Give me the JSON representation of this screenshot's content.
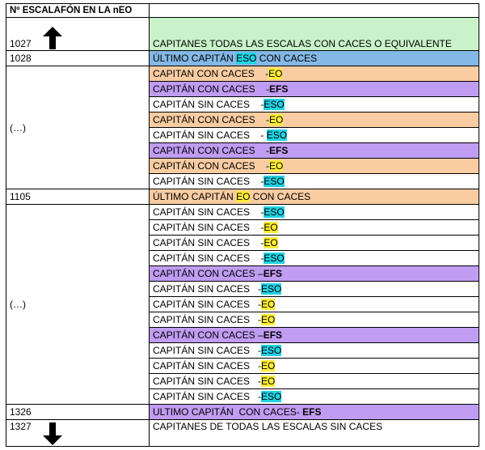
{
  "header": {
    "col1": "Nº ESCALAFÓN EN LA nEO",
    "col2": ""
  },
  "colors": {
    "green": "#c9f2c9",
    "blue": "#84b8e6",
    "orange": "#f9cca2",
    "purple": "#c09cf2",
    "white": "#ffffff",
    "cyan": "#1fd2e3",
    "yellow": "#ffee33"
  },
  "left_col": [
    {
      "text": "1027",
      "arrow": "up-arrow-icon"
    },
    {
      "text": "1028"
    },
    {
      "text": "(…)"
    },
    {
      "text": "1105"
    },
    {
      "text": "(…)"
    },
    {
      "text": "1326"
    },
    {
      "text": "1327",
      "arrow": "down-arrow-icon"
    }
  ],
  "rows": [
    {
      "bg": "green",
      "parts": [
        {
          "t": "CAPITANES TODAS LAS ESCALAS CON CACES O EQUIVALENTE"
        }
      ]
    },
    {
      "bg": "blue",
      "parts": [
        {
          "t": "ÚLTIMO CAPITÁN "
        },
        {
          "t": "ESO",
          "hl": "cyan"
        },
        {
          "t": " CON CACES"
        }
      ]
    },
    {
      "bg": "orange",
      "parts": [
        {
          "t": "CAPITAN CON CACES    -"
        },
        {
          "t": "EO",
          "hl": "yellow"
        }
      ]
    },
    {
      "bg": "purple",
      "parts": [
        {
          "t": "CAPITÁN CON CACES    -"
        },
        {
          "t": "EFS",
          "bold": true
        }
      ]
    },
    {
      "bg": "white",
      "parts": [
        {
          "t": "CAPITÁN SIN CACES    -"
        },
        {
          "t": "ESO",
          "hl": "cyan"
        }
      ]
    },
    {
      "bg": "orange",
      "parts": [
        {
          "t": "CAPITÁN CON CACES    -"
        },
        {
          "t": "EO",
          "hl": "yellow"
        }
      ]
    },
    {
      "bg": "white",
      "parts": [
        {
          "t": "CAPITÁN SIN CACES    - "
        },
        {
          "t": "ESO",
          "hl": "cyan"
        }
      ]
    },
    {
      "bg": "purple",
      "parts": [
        {
          "t": "CAPITÁN CON CACES    -"
        },
        {
          "t": "EFS",
          "bold": true
        }
      ]
    },
    {
      "bg": "orange",
      "parts": [
        {
          "t": "CAPITÁN CON CACES    -"
        },
        {
          "t": "EO",
          "hl": "yellow"
        }
      ]
    },
    {
      "bg": "white",
      "parts": [
        {
          "t": "CAPITÁN SIN CACES    -"
        },
        {
          "t": "ESO",
          "hl": "cyan"
        }
      ]
    },
    {
      "bg": "orange",
      "parts": [
        {
          "t": "ÚLTIMO CAPITÁN "
        },
        {
          "t": "EO",
          "hl": "yellow"
        },
        {
          "t": " CON CACES"
        }
      ]
    },
    {
      "bg": "white",
      "parts": [
        {
          "t": "CAPITÁN SIN CACES    -"
        },
        {
          "t": "ESO",
          "hl": "cyan"
        }
      ]
    },
    {
      "bg": "white",
      "parts": [
        {
          "t": "CAPITÁN SIN CACES    -"
        },
        {
          "t": "EO",
          "hl": "yellow"
        }
      ]
    },
    {
      "bg": "white",
      "parts": [
        {
          "t": "CAPITÁN SIN CACES    -"
        },
        {
          "t": "EO",
          "hl": "yellow"
        }
      ]
    },
    {
      "bg": "white",
      "parts": [
        {
          "t": "CAPITÁN SIN CACES    -"
        },
        {
          "t": "ESO",
          "hl": "cyan"
        }
      ]
    },
    {
      "bg": "purple",
      "parts": [
        {
          "t": "CAPITÁN CON CACES –"
        },
        {
          "t": "EFS",
          "bold": true
        }
      ]
    },
    {
      "bg": "white",
      "parts": [
        {
          "t": "CAPITÁN SIN CACES   -"
        },
        {
          "t": "ESO",
          "hl": "cyan"
        }
      ]
    },
    {
      "bg": "white",
      "parts": [
        {
          "t": "CAPITÁN SIN CACES   -"
        },
        {
          "t": "EO",
          "hl": "yellow"
        }
      ]
    },
    {
      "bg": "white",
      "parts": [
        {
          "t": "CAPITÁN SIN CACES   -"
        },
        {
          "t": "EO",
          "hl": "yellow"
        }
      ]
    },
    {
      "bg": "purple",
      "parts": [
        {
          "t": "CAPITÁN CON CACES –"
        },
        {
          "t": "EFS",
          "bold": true
        }
      ]
    },
    {
      "bg": "white",
      "parts": [
        {
          "t": "CAPITÁN SIN CACES   -"
        },
        {
          "t": "ESO",
          "hl": "cyan"
        }
      ]
    },
    {
      "bg": "white",
      "parts": [
        {
          "t": "CAPITÁN SIN CACES   -"
        },
        {
          "t": "EO",
          "hl": "yellow"
        }
      ]
    },
    {
      "bg": "white",
      "parts": [
        {
          "t": "CAPITÁN SIN CACES   -"
        },
        {
          "t": "EO",
          "hl": "yellow"
        }
      ]
    },
    {
      "bg": "white",
      "parts": [
        {
          "t": "CAPITÁN SIN CACES   -"
        },
        {
          "t": "ESO",
          "hl": "cyan"
        }
      ]
    },
    {
      "bg": "purple",
      "parts": [
        {
          "t": "ULTIMO CAPITÁN  CON CACES- "
        },
        {
          "t": "EFS",
          "bold": true
        }
      ]
    },
    {
      "bg": "white",
      "parts": [
        {
          "t": "CAPITANES DE TODAS LAS ESCALAS SIN CACES"
        }
      ]
    }
  ]
}
